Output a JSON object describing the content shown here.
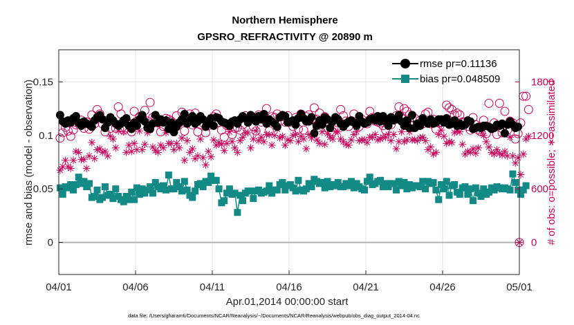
{
  "chart_data": {
    "type": "line",
    "title": [
      "Northern Hemisphere",
      "GPSRO_REFRACTIVITY @ 20890 m"
    ],
    "xlabel": "Apr.01,2014 00:00:00 start",
    "ylabel_left": "rmse and bias (model - observation)",
    "ylabel_right": "# of obs: o=possible; ∗=assimilated",
    "footnote": "data file: /Users/gharamti/Documents/NCAR/Reanalysis/~/Documents/NCAR/Reanalysis/webpub/obs_diag_output_2014-04.nc",
    "xlim": [
      0,
      30
    ],
    "ylim_left": [
      -0.03,
      0.18
    ],
    "ylim_right": [
      -360,
      2160
    ],
    "x_ticks": [
      0,
      5,
      10,
      15,
      20,
      25,
      30
    ],
    "x_tick_labels": [
      "04/01",
      "04/06",
      "04/11",
      "04/16",
      "04/21",
      "04/26",
      "05/01"
    ],
    "left_ticks": [
      0,
      0.05,
      0.1,
      0.15
    ],
    "left_tick_labels": [
      "0",
      "0.05",
      "0.1",
      "0.15"
    ],
    "right_ticks": [
      0,
      600,
      1200,
      1800
    ],
    "right_tick_labels": [
      "0",
      "600",
      "1200",
      "1800"
    ],
    "legend": [
      {
        "label": "rmse pr=0.11136",
        "color": "#000000",
        "marker": "circle"
      },
      {
        "label": "bias pr=0.048509",
        "color": "#138a85",
        "marker": "square"
      }
    ],
    "legend_position": "top-right",
    "colors": {
      "rmse": "#000000",
      "bias": "#138a85",
      "obs": "#c9005a",
      "zero": "#b3b3b3"
    },
    "rmse": [
      0.119,
      0.113,
      0.111,
      0.114,
      0.112,
      0.116,
      0.118,
      0.112,
      0.109,
      0.113,
      0.111,
      0.11,
      0.108,
      0.114,
      0.117,
      0.119,
      0.115,
      0.107,
      0.112,
      0.117,
      0.114,
      0.111,
      0.109,
      0.111,
      0.114,
      0.116,
      0.109,
      0.106,
      0.112,
      0.109,
      0.115,
      0.119,
      0.113,
      0.107,
      0.106,
      0.111,
      0.119,
      0.112,
      0.115,
      0.112,
      0.114,
      0.106,
      0.112,
      0.103,
      0.108,
      0.112,
      0.115,
      0.12,
      0.111,
      0.114,
      0.118,
      0.111,
      0.113,
      0.118,
      0.115,
      0.108,
      0.111,
      0.116,
      0.109,
      0.117,
      0.116,
      0.113,
      0.112,
      0.111,
      0.109,
      0.113,
      0.114,
      0.111,
      0.115,
      0.118,
      0.116,
      0.112,
      0.119,
      0.117,
      0.113,
      0.118,
      0.115,
      0.12,
      0.111,
      0.115,
      0.113,
      0.111,
      0.108,
      0.117,
      0.119,
      0.118,
      0.112,
      0.113,
      0.114,
      0.11,
      0.116,
      0.12,
      0.116,
      0.113,
      0.113,
      0.117,
      0.102,
      0.109,
      0.114,
      0.11,
      0.117,
      0.115,
      0.107,
      0.113,
      0.117,
      0.115,
      0.111,
      0.108,
      0.111,
      0.113,
      0.114,
      0.112,
      0.109,
      0.118,
      0.113,
      0.111,
      0.112,
      0.115,
      0.116,
      0.114,
      0.118,
      0.113,
      0.118,
      0.113,
      0.109,
      0.117,
      0.114,
      0.115,
      0.119,
      0.113,
      0.109,
      0.114,
      0.107,
      0.119,
      0.107,
      0.111,
      0.109,
      0.116,
      0.113,
      0.111,
      0.115,
      0.111,
      0.112,
      0.115,
      0.115,
      0.112,
      0.116,
      0.11,
      0.111,
      0.114,
      0.109,
      0.111,
      0.109,
      0.11,
      0.114,
      0.113,
      0.106,
      0.107,
      0.108,
      0.107,
      0.109,
      0.109,
      0.108,
      0.106,
      0.107,
      0.11,
      0.109,
      0.111,
      0.102,
      0.11,
      0.113,
      0.11,
      0.107,
      0.108
    ],
    "bias": [
      0.051,
      0.045,
      0.052,
      0.051,
      0.054,
      0.049,
      0.054,
      0.061,
      0.055,
      0.057,
      0.052,
      0.055,
      0.042,
      0.043,
      0.049,
      0.04,
      0.042,
      0.052,
      0.044,
      0.045,
      0.041,
      0.05,
      0.043,
      0.04,
      0.038,
      0.043,
      0.04,
      0.047,
      0.04,
      0.051,
      0.045,
      0.05,
      0.046,
      0.049,
      0.052,
      0.046,
      0.056,
      0.052,
      0.05,
      0.053,
      0.049,
      0.063,
      0.05,
      0.05,
      0.056,
      0.052,
      0.048,
      0.057,
      0.049,
      0.044,
      0.042,
      0.048,
      0.054,
      0.055,
      0.052,
      0.057,
      0.056,
      0.062,
      0.058,
      0.058,
      0.05,
      0.037,
      0.039,
      0.046,
      0.05,
      0.045,
      0.046,
      0.028,
      0.044,
      0.039,
      0.046,
      0.048,
      0.048,
      0.041,
      0.048,
      0.049,
      0.046,
      0.047,
      0.048,
      0.053,
      0.046,
      0.049,
      0.049,
      0.054,
      0.056,
      0.049,
      0.053,
      0.054,
      0.051,
      0.048,
      0.058,
      0.049,
      0.048,
      0.05,
      0.055,
      0.052,
      0.059,
      0.057,
      0.055,
      0.056,
      0.051,
      0.057,
      0.052,
      0.054,
      0.053,
      0.056,
      0.052,
      0.052,
      0.055,
      0.053,
      0.057,
      0.051,
      0.055,
      0.052,
      0.05,
      0.049,
      0.057,
      0.061,
      0.054,
      0.055,
      0.057,
      0.058,
      0.052,
      0.055,
      0.052,
      0.055,
      0.055,
      0.049,
      0.057,
      0.053,
      0.056,
      0.05,
      0.054,
      0.051,
      0.053,
      0.053,
      0.052,
      0.057,
      0.05,
      0.057,
      0.055,
      0.056,
      0.049,
      0.04,
      0.054,
      0.05,
      0.057,
      0.044,
      0.053,
      0.054,
      0.047,
      0.045,
      0.051,
      0.052,
      0.045,
      0.05,
      0.039,
      0.051,
      0.046,
      0.043,
      0.05,
      0.045,
      0.047,
      0.051,
      0.049,
      0.052,
      0.051,
      0.05,
      0.051,
      0.05,
      0.049,
      0.064,
      0.056,
      0.049,
      0.045,
      0.049,
      0.053
    ],
    "obs_possible": [
      1170,
      1230,
      1290,
      1250,
      1190,
      1260,
      1320,
      1340,
      1370,
      1280,
      1350,
      1270,
      1430,
      1330,
      1490,
      1440,
      1330,
      1240,
      1370,
      1280,
      1350,
      1280,
      1520,
      1440,
      1260,
      1370,
      1320,
      1240,
      1470,
      1360,
      1410,
      1410,
      1480,
      1360,
      1570,
      1400,
      1410,
      1340,
      1240,
      1300,
      1390,
      1380,
      1360,
      1300,
      1420,
      1340,
      1460,
      1250,
      1370,
      1440,
      1320,
      1450,
      1240,
      1320,
      1340,
      1230,
      1310,
      1350,
      1410,
      1440,
      1350,
      1260,
      1180,
      1310,
      1310,
      1210,
      1280,
      1290,
      1260,
      1320,
      1420,
      1360,
      1410,
      1300,
      1250,
      1430,
      1350,
      1390,
      1500,
      1250,
      1410,
      1400,
      1440,
      1360,
      1410,
      1350,
      1420,
      1350,
      1300,
      1400,
      1270,
      1440,
      1260,
      1410,
      1430,
      1380,
      1510,
      1380,
      1450,
      1350,
      1410,
      1290,
      1320,
      1240,
      1380,
      1340,
      1490,
      1420,
      1360,
      1300,
      1360,
      1440,
      1330,
      1300,
      1380,
      1340,
      1330,
      1470,
      1400,
      1360,
      1350,
      1340,
      1310,
      1260,
      1360,
      1320,
      1380,
      1420,
      1520,
      1390,
      1500,
      1470,
      1430,
      1310,
      1390,
      1330,
      1370,
      1330,
      1440,
      1460,
      1330,
      1380,
      1270,
      1340,
      1350,
      1370,
      1540,
      1510,
      1490,
      1430,
      1450,
      1430,
      1350,
      1350,
      1300,
      1260,
      1400,
      1320,
      1260,
      1240,
      1370,
      1220,
      1560,
      1280,
      1340,
      1210,
      1560,
      1230,
      1470,
      1260,
      1360,
      1340,
      1160,
      1220,
      1340,
      1640,
      1640,
      1490
    ],
    "obs_assimilated": [
      810,
      850,
      920,
      850,
      830,
      920,
      1020,
      1010,
      930,
      930,
      830,
      970,
      1120,
      940,
      1040,
      1050,
      1010,
      1020,
      970,
      1190,
      1160,
      1060,
      1250,
      1310,
      1240,
      1010,
      1090,
      1020,
      1110,
      1040,
      1250,
      1040,
      1100,
      1230,
      1260,
      1070,
      1030,
      1010,
      1090,
      1060,
      1230,
      1110,
      1110,
      1040,
      1110,
      1060,
      1170,
      920,
      1140,
      1010,
      1050,
      940,
      970,
      1160,
      950,
      870,
      1020,
      960,
      1150,
      1090,
      1120,
      1100,
      1030,
      1110,
      1240,
      1130,
      1060,
      1010,
      1140,
      1180,
      1230,
      1230,
      1060,
      1160,
      1250,
      1140,
      1180,
      1130,
      1210,
      1210,
      1090,
      1200,
      1270,
      1170,
      1190,
      1090,
      1150,
      1140,
      1200,
      1210,
      1130,
      1190,
      1160,
      1050,
      1210,
      1170,
      1210,
      1150,
      1110,
      1240,
      1100,
      1220,
      1180,
      1160,
      1240,
      1240,
      1160,
      1130,
      1100,
      1090,
      1150,
      1210,
      1240,
      1140,
      1150,
      1150,
      1120,
      1180,
      1180,
      1210,
      1150,
      1160,
      1180,
      1180,
      1210,
      1140,
      1210,
      1050,
      1130,
      1240,
      1130,
      1150,
      1240,
      1150,
      1150,
      1140,
      1170,
      1180,
      1140,
      1040,
      1070,
      990,
      1010,
      1210,
      1260,
      1190,
      1110,
      1130,
      1120,
      1230,
      1250,
      1240,
      1100,
      990,
      1020,
      1010,
      1050,
      1000,
      1060,
      1250,
      1200,
      1130,
      1070,
      1010,
      990,
      1040,
      1000,
      980,
      1020,
      970,
      1180,
      970,
      890,
      950,
      760,
      990,
      1160,
      1190
    ]
  }
}
